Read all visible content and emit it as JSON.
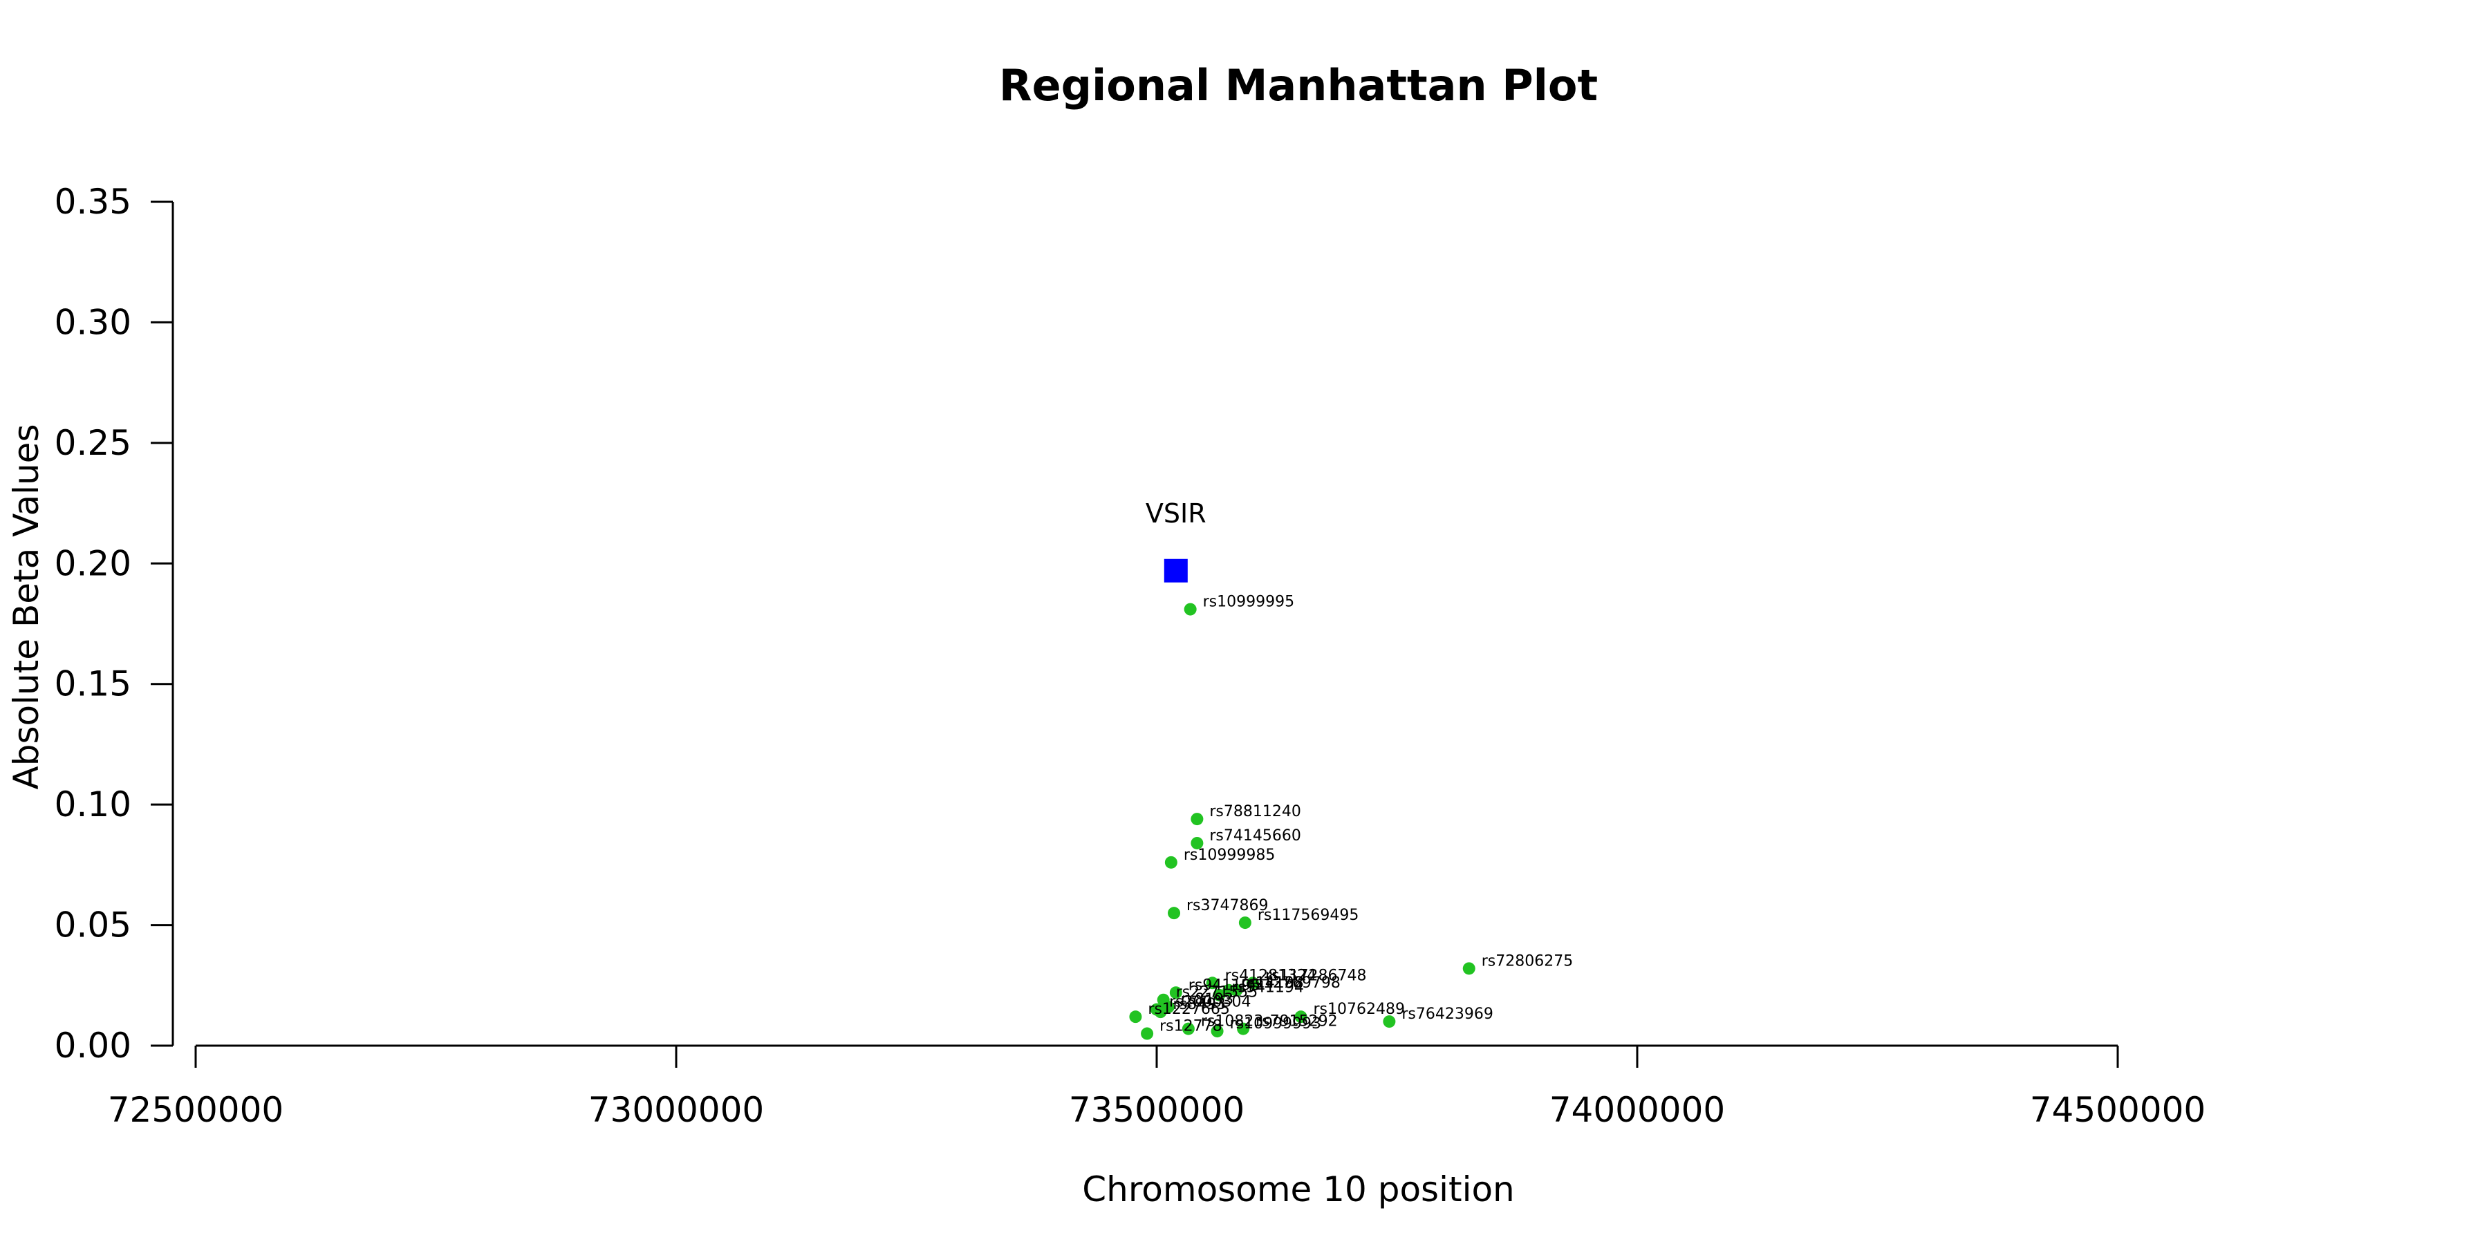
{
  "chart_data": {
    "type": "scatter",
    "title": "Regional Manhattan Plot",
    "xlabel": "Chromosome 10 position",
    "ylabel": "Absolute Beta Values",
    "xlim": [
      72475000,
      74600000
    ],
    "ylim": [
      0,
      0.35
    ],
    "x_ticks": [
      72500000,
      73000000,
      73500000,
      74000000,
      74500000
    ],
    "y_ticks": [
      0.0,
      0.05,
      0.1,
      0.15,
      0.2,
      0.25,
      0.3,
      0.35
    ],
    "y_tick_labels": [
      "0.00",
      "0.05",
      "0.10",
      "0.15",
      "0.20",
      "0.25",
      "0.30",
      "0.35"
    ],
    "grid": false,
    "legend": "none",
    "gene": {
      "name": "VSIR",
      "x": 73520000,
      "y": 0.197,
      "color": "#0000ff",
      "marker": "square"
    },
    "point_color": "#22c322",
    "points": [
      {
        "label": "rs10999995",
        "x": 73535000,
        "y": 0.181
      },
      {
        "label": "rs78811240",
        "x": 73542000,
        "y": 0.094
      },
      {
        "label": "rs74145660",
        "x": 73542000,
        "y": 0.084
      },
      {
        "label": "rs10999985",
        "x": 73515000,
        "y": 0.076
      },
      {
        "label": "rs3747869",
        "x": 73518000,
        "y": 0.055
      },
      {
        "label": "rs117569495",
        "x": 73592000,
        "y": 0.051
      },
      {
        "label": "rs72806275",
        "x": 73825000,
        "y": 0.032
      },
      {
        "label": "rs41281324",
        "x": 73558000,
        "y": 0.026
      },
      {
        "label": "rs117286748",
        "x": 73600000,
        "y": 0.026
      },
      {
        "label": "rs14198",
        "x": 73575000,
        "y": 0.023
      },
      {
        "label": "rs12769798",
        "x": 73583000,
        "y": 0.023
      },
      {
        "label": "rs941194",
        "x": 73565000,
        "y": 0.021
      },
      {
        "label": "rs941195",
        "x": 73520000,
        "y": 0.022
      },
      {
        "label": "rs2271555",
        "x": 73507000,
        "y": 0.019
      },
      {
        "label": "rs8193",
        "x": 73512000,
        "y": 0.016
      },
      {
        "label": "rs2000304",
        "x": 73500000,
        "y": 0.015
      },
      {
        "label": "rs8493",
        "x": 73504000,
        "y": 0.014
      },
      {
        "label": "rs10762489",
        "x": 73650000,
        "y": 0.012
      },
      {
        "label": "rs76423969",
        "x": 73742000,
        "y": 0.01
      },
      {
        "label": "rs1227665",
        "x": 73478000,
        "y": 0.012
      },
      {
        "label": "rs10823",
        "x": 73533000,
        "y": 0.007
      },
      {
        "label": "rs10999993",
        "x": 73563000,
        "y": 0.006
      },
      {
        "label": "rs7915292",
        "x": 73590000,
        "y": 0.007
      },
      {
        "label": "rs12778",
        "x": 73490000,
        "y": 0.005
      }
    ]
  }
}
